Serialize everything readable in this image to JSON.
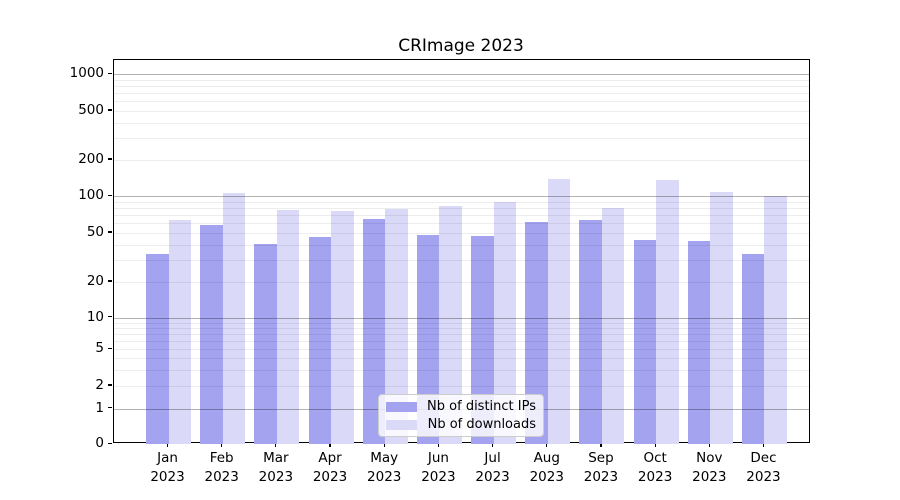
{
  "chart_data": {
    "type": "bar",
    "title": "CRImage 2023",
    "categories": [
      "Jan",
      "Feb",
      "Mar",
      "Apr",
      "May",
      "Jun",
      "Jul",
      "Aug",
      "Sep",
      "Oct",
      "Nov",
      "Dec"
    ],
    "category_year": "2023",
    "series": [
      {
        "name": "Nb of distinct IPs",
        "color": "#a3a3f0",
        "values": [
          34,
          58,
          41,
          46,
          65,
          48,
          47,
          61,
          64,
          44,
          43,
          34
        ]
      },
      {
        "name": "Nb of downloads",
        "color": "#dadaf8",
        "values": [
          64,
          106,
          77,
          76,
          79,
          83,
          90,
          138,
          80,
          136,
          108,
          101
        ]
      }
    ],
    "ylabel": "",
    "xlabel": "",
    "yscale": "log-like with 0 baseline",
    "yticks": [
      1000,
      500,
      200,
      100,
      50,
      20,
      10,
      5,
      2,
      1,
      0
    ],
    "ylim": [
      0,
      1300
    ],
    "grid": "horizontal major+minor",
    "legend_position": "lower center",
    "grid_major_color": "#b3b3b3",
    "grid_minor_color": "#ededed"
  }
}
